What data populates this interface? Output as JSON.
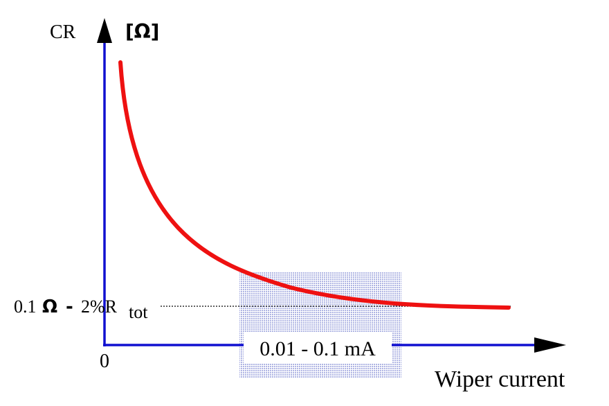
{
  "diagram": {
    "y_axis": {
      "label": "CR",
      "unit": "[Ω]"
    },
    "x_axis": {
      "label": "Wiper current",
      "origin_label": "0"
    },
    "min_level": {
      "prefix": "0.1",
      "omega": "Ω",
      "dash": "-",
      "value": "2%R",
      "subscript": "tot"
    },
    "range_box": {
      "text": "0.01 - 0.1 mA"
    },
    "colors": {
      "axis": "#1010d0",
      "curve": "#ee1111",
      "highlight": "#b6bbe6",
      "arrowhead": "#000000",
      "guide": "#000000"
    }
  }
}
